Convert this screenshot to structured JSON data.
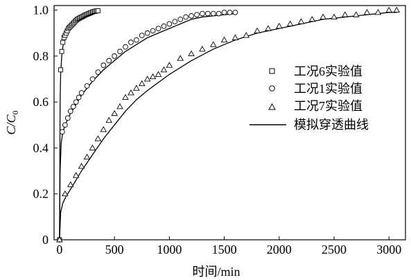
{
  "chart_data": {
    "type": "scatter",
    "xlabel": "时间/min",
    "ylabel": "C/C",
    "ylabel_sub": "0",
    "xlim": [
      -50,
      3150
    ],
    "ylim": [
      0,
      1.02
    ],
    "xticks": [
      0,
      500,
      1000,
      1500,
      2000,
      2500,
      3000
    ],
    "yticks": [
      0,
      0.2,
      0.4,
      0.6,
      0.8,
      1.0
    ],
    "xtick_labels": [
      "0",
      "500",
      "1000",
      "1500",
      "2000",
      "2500",
      "3000"
    ],
    "ytick_labels": [
      "0",
      "0.2",
      "0.4",
      "0.6",
      "0.8",
      "1.0"
    ],
    "grid": false,
    "legend_position": "right-middle",
    "legend": [
      "工况6实验值",
      "工况1实验值",
      "工况7实验值",
      "模拟穿透曲线"
    ],
    "series": [
      {
        "name": "工况6实验值",
        "marker": "square",
        "x": [
          0,
          10,
          20,
          30,
          40,
          50,
          60,
          70,
          80,
          90,
          100,
          110,
          120,
          130,
          140,
          150,
          160,
          170,
          180,
          190,
          200,
          210,
          220,
          230,
          240,
          250,
          260,
          270,
          280,
          290,
          300,
          310,
          320,
          330,
          340,
          350
        ],
        "y": [
          0,
          0.74,
          0.82,
          0.86,
          0.88,
          0.89,
          0.9,
          0.91,
          0.92,
          0.925,
          0.93,
          0.935,
          0.94,
          0.945,
          0.95,
          0.955,
          0.96,
          0.962,
          0.965,
          0.968,
          0.97,
          0.972,
          0.975,
          0.978,
          0.98,
          0.982,
          0.984,
          0.986,
          0.988,
          0.99,
          0.992,
          0.994,
          0.995,
          0.996,
          0.997,
          0.997
        ]
      },
      {
        "name": "工况1实验值",
        "marker": "circle",
        "x": [
          0,
          25,
          50,
          75,
          100,
          125,
          150,
          175,
          200,
          250,
          300,
          350,
          400,
          450,
          500,
          550,
          600,
          650,
          700,
          750,
          800,
          850,
          900,
          950,
          1000,
          1050,
          1100,
          1150,
          1200,
          1250,
          1300,
          1350,
          1400,
          1450,
          1500,
          1550,
          1600
        ],
        "y": [
          0,
          0.47,
          0.5,
          0.53,
          0.56,
          0.58,
          0.6,
          0.62,
          0.64,
          0.67,
          0.7,
          0.73,
          0.76,
          0.78,
          0.8,
          0.82,
          0.84,
          0.86,
          0.87,
          0.89,
          0.9,
          0.91,
          0.92,
          0.93,
          0.94,
          0.95,
          0.96,
          0.97,
          0.975,
          0.98,
          0.985,
          0.985,
          0.985,
          0.985,
          0.99,
          0.99,
          0.99
        ]
      },
      {
        "name": "工况7实验值",
        "marker": "triangle",
        "x": [
          0,
          50,
          100,
          150,
          200,
          250,
          300,
          350,
          400,
          450,
          500,
          550,
          600,
          650,
          700,
          750,
          800,
          850,
          900,
          950,
          1000,
          1100,
          1200,
          1300,
          1400,
          1500,
          1600,
          1700,
          1800,
          1900,
          2000,
          2100,
          2200,
          2300,
          2400,
          2500,
          2600,
          2700,
          2800,
          2900,
          3000,
          3070
        ],
        "y": [
          0,
          0.2,
          0.24,
          0.28,
          0.32,
          0.36,
          0.4,
          0.44,
          0.48,
          0.52,
          0.55,
          0.58,
          0.62,
          0.64,
          0.66,
          0.68,
          0.7,
          0.71,
          0.72,
          0.74,
          0.76,
          0.79,
          0.81,
          0.83,
          0.85,
          0.87,
          0.88,
          0.89,
          0.91,
          0.92,
          0.93,
          0.94,
          0.95,
          0.96,
          0.97,
          0.97,
          0.98,
          0.98,
          0.99,
          0.99,
          1.0,
          1.0
        ]
      },
      {
        "name": "模拟穿透曲线",
        "marker": "line",
        "curves": [
          {
            "x": [
              0,
              5,
              10,
              20,
              30,
              50,
              80,
              120,
              160,
              200,
              250,
              300,
              350
            ],
            "y": [
              0,
              0.6,
              0.72,
              0.8,
              0.84,
              0.88,
              0.91,
              0.94,
              0.96,
              0.975,
              0.985,
              0.99,
              0.995
            ]
          },
          {
            "x": [
              0,
              5,
              15,
              30,
              60,
              100,
              150,
              200,
              300,
              400,
              500,
              600,
              700,
              800,
              900,
              1000,
              1100,
              1200,
              1300,
              1400,
              1500,
              1600
            ],
            "y": [
              0,
              0.3,
              0.42,
              0.47,
              0.51,
              0.55,
              0.59,
              0.63,
              0.69,
              0.74,
              0.78,
              0.82,
              0.85,
              0.88,
              0.9,
              0.92,
              0.94,
              0.96,
              0.97,
              0.975,
              0.98,
              0.985
            ]
          },
          {
            "x": [
              0,
              10,
              30,
              60,
              100,
              200,
              300,
              400,
              500,
              600,
              700,
              800,
              1000,
              1200,
              1400,
              1600,
              1800,
              2000,
              2200,
              2400,
              2600,
              2800,
              3000,
              3070
            ],
            "y": [
              0,
              0.12,
              0.16,
              0.19,
              0.22,
              0.3,
              0.37,
              0.44,
              0.5,
              0.56,
              0.61,
              0.65,
              0.72,
              0.78,
              0.83,
              0.87,
              0.9,
              0.92,
              0.94,
              0.96,
              0.97,
              0.98,
              0.99,
              0.99
            ]
          }
        ]
      }
    ]
  }
}
